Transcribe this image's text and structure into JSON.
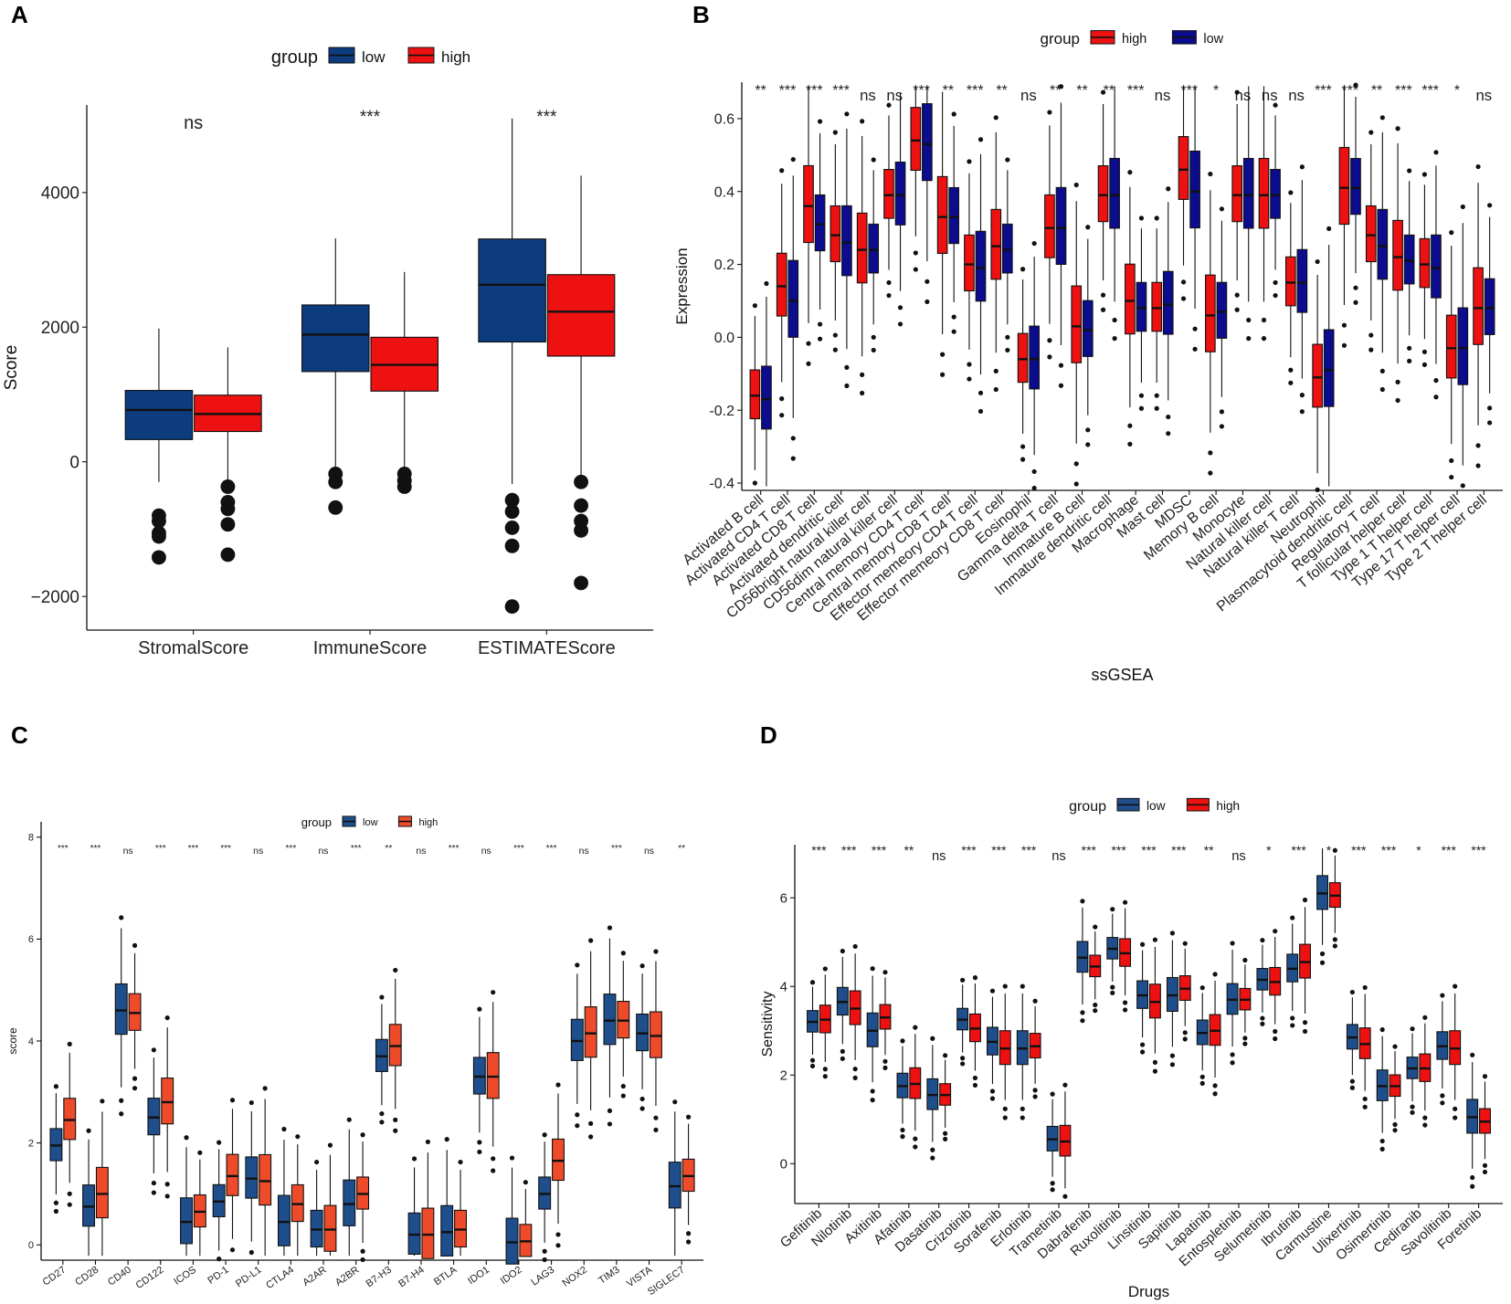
{
  "chart_data": [
    {
      "panel": "A",
      "type": "box",
      "legend": {
        "title": "group",
        "entries": [
          {
            "name": "low",
            "color": "#0C3C7E"
          },
          {
            "name": "high",
            "color": "#EE1111"
          }
        ]
      },
      "ylabel": "Score",
      "xlabel": "",
      "ylim": [
        -2500,
        5300
      ],
      "yticks": [
        -2000,
        0,
        2000,
        4000
      ],
      "categories": [
        "StromalScore",
        "ImmuneScore",
        "ESTIMATEScore"
      ],
      "significance": [
        "ns",
        "***",
        "***"
      ],
      "series": [
        {
          "name": "low",
          "boxes": [
            {
              "q1": 330,
              "median": 770,
              "q3": 1060,
              "wlo": -300,
              "whi": 1980,
              "out": [
                -800,
                -880,
                -1060,
                -1110,
                -1420
              ]
            },
            {
              "q1": 1340,
              "median": 1890,
              "q3": 2330,
              "wlo": -170,
              "whi": 3320,
              "out": [
                -180,
                -300,
                -680
              ]
            },
            {
              "q1": 1780,
              "median": 2630,
              "q3": 3310,
              "wlo": -330,
              "whi": 5100,
              "out": [
                -570,
                -740,
                -980,
                -1250,
                -2150
              ]
            }
          ]
        },
        {
          "name": "high",
          "boxes": [
            {
              "q1": 450,
              "median": 710,
              "q3": 990,
              "wlo": -300,
              "whi": 1700,
              "out": [
                -370,
                -600,
                -700,
                -930,
                -1380
              ]
            },
            {
              "q1": 1050,
              "median": 1440,
              "q3": 1850,
              "wlo": -160,
              "whi": 2820,
              "out": [
                -180,
                -280,
                -370
              ]
            },
            {
              "q1": 1570,
              "median": 2230,
              "q3": 2780,
              "wlo": -250,
              "whi": 4250,
              "out": [
                -300,
                -650,
                -880,
                -1020,
                -1800
              ]
            }
          ]
        }
      ]
    },
    {
      "panel": "B",
      "type": "box",
      "legend": {
        "title": "group",
        "entries": [
          {
            "name": "high",
            "color": "#EE1111"
          },
          {
            "name": "low",
            "color": "#0C0C8E"
          }
        ]
      },
      "ylabel": "Expression",
      "xlabel": "ssGSEA",
      "ylim": [
        -0.42,
        0.7
      ],
      "yticks": [
        -0.4,
        -0.2,
        0.0,
        0.2,
        0.4,
        0.6
      ],
      "categories": [
        "Activated B cell",
        "Activated CD4 T cell",
        "Activated CD8 T cell",
        "Activated dendritic cell",
        "CD56bright natural killer cell",
        "CD56dim natural killer cell",
        "Central memory CD4 T cell",
        "Central memory CD8 T cell",
        "Effector memeory CD4 T cell",
        "Effector memeory CD8 T cell",
        "Eosinophil",
        "Gamma delta T cell",
        "Immature  B cell",
        "Immature dendritic cell",
        "Macrophage",
        "Mast cell",
        "MDSC",
        "Memory B cell",
        "Monocyte",
        "Natural killer cell",
        "Natural killer T cell",
        "Neutrophil",
        "Plasmacytoid dendritic cell",
        "Regulatory T cell",
        "T follicular helper cell",
        "Type 1 T helper cell",
        "Type 17 T helper cell",
        "Type 2 T helper cell"
      ],
      "significance": [
        "**",
        "***",
        "***",
        "***",
        "ns",
        "ns",
        "***",
        "**",
        "***",
        "**",
        "ns",
        "**",
        "**",
        "**",
        "***",
        "ns",
        "***",
        "*",
        "ns",
        "ns",
        "ns",
        "***",
        "***",
        "**",
        "***",
        "***",
        "*",
        "ns"
      ],
      "high_median": [
        -0.16,
        0.14,
        0.36,
        0.28,
        0.24,
        0.39,
        0.54,
        0.33,
        0.2,
        0.25,
        -0.06,
        0.3,
        0.03,
        0.39,
        0.1,
        0.08,
        0.46,
        0.06,
        0.39,
        0.39,
        0.15,
        -0.11,
        0.41,
        0.28,
        0.22,
        0.2,
        -0.03,
        0.08
      ],
      "low_median": [
        -0.17,
        0.1,
        0.31,
        0.26,
        0.24,
        0.39,
        0.53,
        0.33,
        0.19,
        0.24,
        -0.06,
        0.3,
        0.02,
        0.39,
        0.08,
        0.09,
        0.4,
        0.07,
        0.39,
        0.39,
        0.15,
        -0.09,
        0.41,
        0.25,
        0.21,
        0.19,
        -0.03,
        0.08
      ]
    },
    {
      "panel": "C",
      "type": "box",
      "legend": {
        "title": "group",
        "entries": [
          {
            "name": "low",
            "color": "#1F4E8C"
          },
          {
            "name": "high",
            "color": "#EE4B2B"
          }
        ]
      },
      "ylabel": "score",
      "xlabel": "",
      "ylim": [
        -0.3,
        8.3
      ],
      "yticks": [
        0,
        2,
        4,
        6,
        8
      ],
      "categories": [
        "CD27",
        "CD28",
        "CD40",
        "CD122",
        "ICOS",
        "PD-1",
        "PD-L1",
        "CTLA4",
        "A2AR",
        "A2BR",
        "B7-H3",
        "B7-H4",
        "BTLA",
        "IDO1",
        "IDO2",
        "LAG3",
        "NOX2",
        "TIM3",
        "VISTA",
        "SIGLEC7"
      ],
      "significance": [
        "***",
        "***",
        "ns",
        "***",
        "***",
        "***",
        "ns",
        "***",
        "ns",
        "***",
        "**",
        "ns",
        "***",
        "ns",
        "***",
        "***",
        "ns",
        "***",
        "ns",
        "**"
      ],
      "low_median": [
        1.95,
        0.75,
        4.6,
        2.5,
        0.45,
        0.85,
        1.3,
        0.45,
        0.3,
        0.8,
        3.7,
        0.2,
        0.25,
        3.3,
        0.05,
        1.0,
        4.0,
        4.4,
        4.15,
        1.15
      ],
      "high_median": [
        2.45,
        1.0,
        4.55,
        2.8,
        0.65,
        1.35,
        1.25,
        0.8,
        0.3,
        1.0,
        3.9,
        0.2,
        0.3,
        3.3,
        0.07,
        1.65,
        4.15,
        4.4,
        4.1,
        1.35
      ]
    },
    {
      "panel": "D",
      "type": "box",
      "legend": {
        "title": "group",
        "entries": [
          {
            "name": "low",
            "color": "#1F4E8C"
          },
          {
            "name": "high",
            "color": "#EE1111"
          }
        ]
      },
      "ylabel": "Sensitivity",
      "xlabel": "Drugs",
      "ylim": [
        -0.9,
        7.2
      ],
      "yticks": [
        0,
        2,
        4,
        6
      ],
      "categories": [
        "Gefitinib",
        "Nilotinib",
        "Axitinib",
        "Afatinib",
        "Dasatinib",
        "Crizotinib",
        "Sorafenib",
        "Erlotinib",
        "Trametinib",
        "Dabrafenib",
        "Ruxolitinib",
        "Linsitinib",
        "Sapitinib",
        "Lapatinib",
        "Entospletinib",
        "Selumetinib",
        "Ibrutinib",
        "Carmustine",
        "Ulixertinib",
        "Osimertinib",
        "Cediranib",
        "Savolitinib",
        "Foretinib"
      ],
      "significance": [
        "***",
        "***",
        "***",
        "**",
        "ns",
        "***",
        "***",
        "***",
        "ns",
        "***",
        "***",
        "***",
        "***",
        "**",
        "ns",
        "*",
        "***",
        "*",
        "***",
        "***",
        "*",
        "***",
        "***"
      ],
      "low_median": [
        3.2,
        3.65,
        3.0,
        1.75,
        1.55,
        3.25,
        2.75,
        2.6,
        0.55,
        4.65,
        4.85,
        3.8,
        3.8,
        2.95,
        3.7,
        4.15,
        4.4,
        6.1,
        2.85,
        1.75,
        2.15,
        2.65,
        1.05
      ],
      "high_median": [
        3.25,
        3.5,
        3.3,
        1.8,
        1.55,
        3.05,
        2.6,
        2.65,
        0.5,
        4.45,
        4.75,
        3.65,
        3.95,
        3.0,
        3.7,
        4.1,
        4.55,
        6.05,
        2.7,
        1.75,
        2.15,
        2.6,
        0.95
      ]
    }
  ]
}
